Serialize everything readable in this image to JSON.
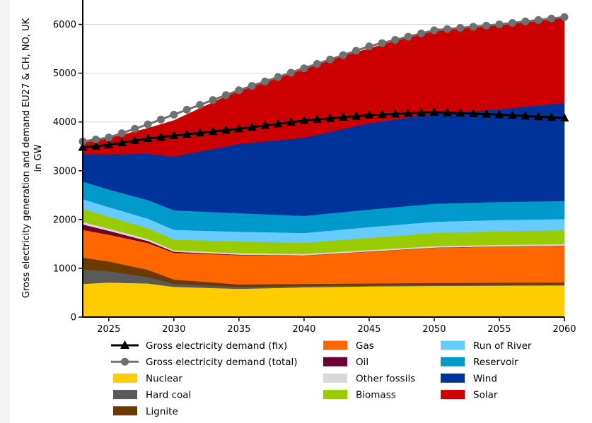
{
  "colors": {
    "background": "#f3f3f3",
    "plot_background": "#ffffff",
    "grid": "#d9d9d9"
  },
  "chart_data": {
    "type": "area",
    "ylabel": "Gross electricity generation and demand EU27 & CH, NO, UK in GW",
    "ylabel_lines": [
      "Gross electricity generation and demand EU27 & CH, NO, UK",
      "in GW"
    ],
    "xlabel": "",
    "xlim": [
      2023,
      2060
    ],
    "ylim": [
      0,
      6500
    ],
    "x_ticks": [
      2025,
      2030,
      2035,
      2040,
      2045,
      2050,
      2055,
      2060
    ],
    "y_ticks": [
      0,
      1000,
      2000,
      3000,
      4000,
      5000,
      6000
    ],
    "grid": "horizontal",
    "legend_position": "bottom",
    "x": [
      2023,
      2025,
      2028,
      2030,
      2035,
      2040,
      2045,
      2050,
      2055,
      2060
    ],
    "stacked_series": [
      {
        "name": "Nuclear",
        "color": "#ffcc00",
        "values": [
          680,
          710,
          690,
          620,
          580,
          610,
          630,
          640,
          645,
          650
        ]
      },
      {
        "name": "Hard coal",
        "color": "#595959",
        "values": [
          300,
          230,
          130,
          60,
          40,
          30,
          20,
          20,
          20,
          20
        ]
      },
      {
        "name": "Lignite",
        "color": "#6b3a00",
        "values": [
          240,
          200,
          150,
          90,
          50,
          40,
          40,
          40,
          40,
          40
        ]
      },
      {
        "name": "Gas",
        "color": "#ff6600",
        "values": [
          570,
          550,
          550,
          550,
          600,
          580,
          650,
          720,
          740,
          750
        ]
      },
      {
        "name": "Oil",
        "color": "#6b0033",
        "values": [
          110,
          80,
          40,
          20,
          10,
          5,
          5,
          5,
          5,
          5
        ]
      },
      {
        "name": "Other fossils",
        "color": "#d9d9d9",
        "values": [
          50,
          45,
          40,
          30,
          30,
          30,
          30,
          30,
          30,
          30
        ]
      },
      {
        "name": "Biomass",
        "color": "#99cc00",
        "values": [
          270,
          240,
          220,
          220,
          240,
          230,
          250,
          270,
          280,
          285
        ]
      },
      {
        "name": "Run of River",
        "color": "#66ccff",
        "values": [
          200,
          200,
          200,
          200,
          200,
          200,
          220,
          230,
          230,
          230
        ]
      },
      {
        "name": "Reservoir",
        "color": "#0099cc",
        "values": [
          360,
          360,
          380,
          400,
          380,
          350,
          360,
          370,
          370,
          370
        ]
      },
      {
        "name": "Wind",
        "color": "#003399",
        "values": [
          560,
          720,
          950,
          1100,
          1420,
          1600,
          1770,
          1840,
          1900,
          2010
        ]
      },
      {
        "name": "Solar",
        "color": "#cc0000",
        "values": [
          230,
          330,
          520,
          740,
          1100,
          1450,
          1530,
          1735,
          1740,
          1760
        ]
      }
    ],
    "line_series": [
      {
        "name": "Gross electricity demand (fix)",
        "color": "#000000",
        "marker": "triangle",
        "values": [
          3480,
          3530,
          3660,
          3720,
          3860,
          4030,
          4140,
          4200,
          4150,
          4080
        ]
      },
      {
        "name": "Gross electricity demand (total)",
        "color": "#707070",
        "marker": "circle",
        "values": [
          3600,
          3680,
          3950,
          4150,
          4650,
          5100,
          5550,
          5880,
          6000,
          6150
        ]
      }
    ],
    "legend": {
      "col1": [
        {
          "name": "Gross electricity demand (fix)",
          "kind": "line",
          "marker": "triangle",
          "color": "#000000"
        },
        {
          "name": "Gross electricity demand (total)",
          "kind": "line",
          "marker": "circle",
          "color": "#707070"
        },
        {
          "name": "Nuclear",
          "kind": "box",
          "color": "#ffcc00"
        },
        {
          "name": "Hard coal",
          "kind": "box",
          "color": "#595959"
        },
        {
          "name": "Lignite",
          "kind": "box",
          "color": "#6b3a00"
        }
      ],
      "col2": [
        {
          "name": "Gas",
          "kind": "box",
          "color": "#ff6600"
        },
        {
          "name": "Oil",
          "kind": "box",
          "color": "#6b0033"
        },
        {
          "name": "Other fossils",
          "kind": "box",
          "color": "#d9d9d9"
        },
        {
          "name": "Biomass",
          "kind": "box",
          "color": "#99cc00"
        }
      ],
      "col3": [
        {
          "name": "Run of River",
          "kind": "box",
          "color": "#66ccff"
        },
        {
          "name": "Reservoir",
          "kind": "box",
          "color": "#0099cc"
        },
        {
          "name": "Wind",
          "kind": "box",
          "color": "#003399"
        },
        {
          "name": "Solar",
          "kind": "box",
          "color": "#cc0000"
        }
      ]
    }
  }
}
